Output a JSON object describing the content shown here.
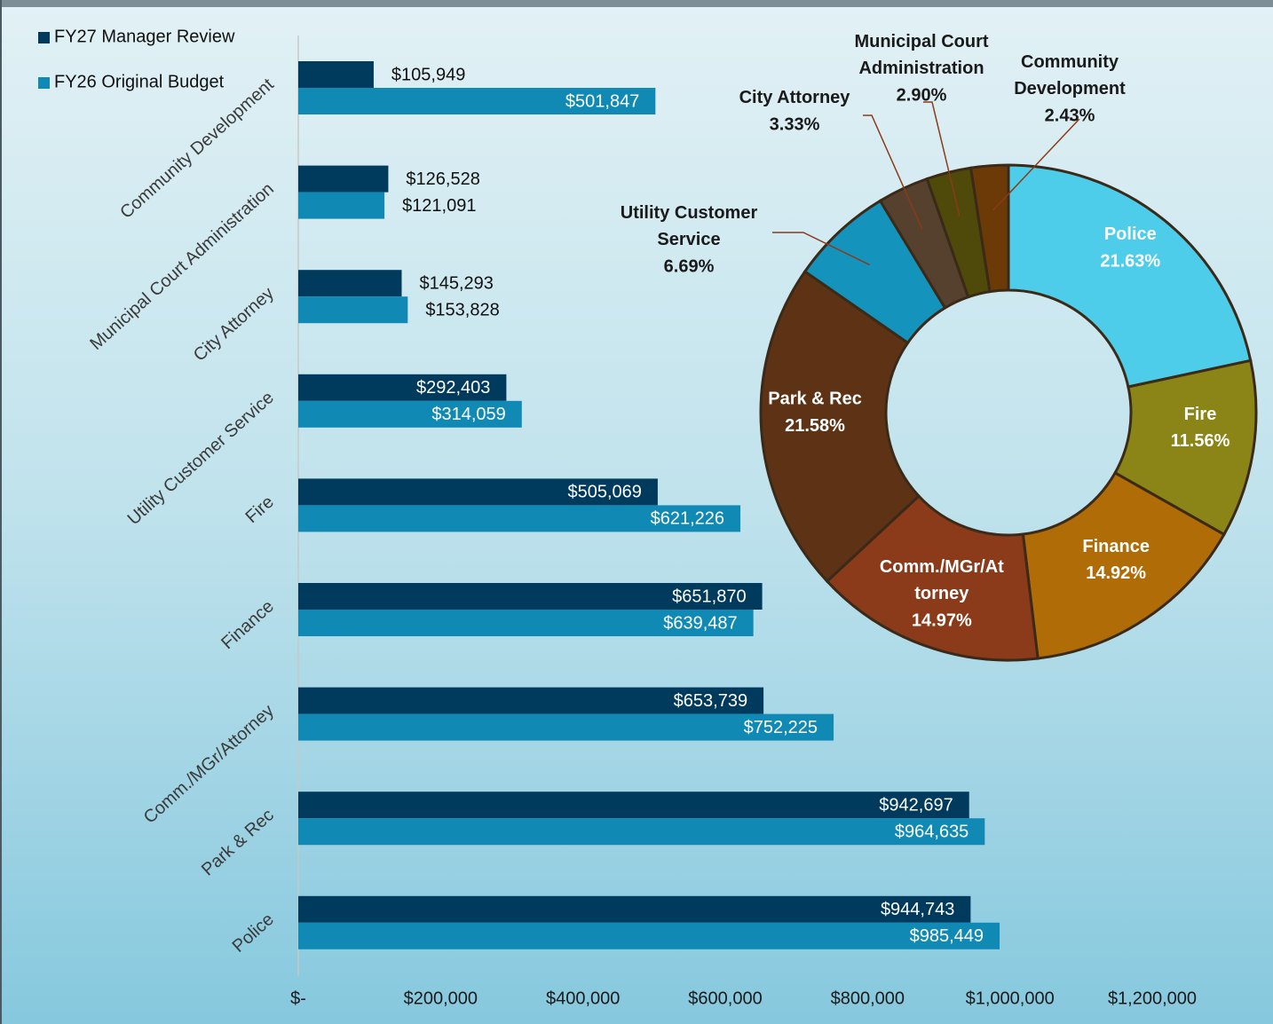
{
  "chart_data": [
    {
      "type": "bar",
      "orientation": "horizontal",
      "categories": [
        "Community Development",
        "Municipal Court Administration",
        "City Attorney",
        "Utility Customer Service",
        "Fire",
        "Finance",
        "Comm./MGr/Attorney",
        "Park & Rec",
        "Police"
      ],
      "series": [
        {
          "name": "FY27 Manager Review",
          "color": "#003a5c",
          "values": [
            105949,
            126528,
            145293,
            292403,
            505069,
            651870,
            653739,
            942697,
            944743
          ],
          "value_labels": [
            "$105,949",
            "$126,528",
            "$145,293",
            "$292,403",
            "$505,069",
            "$651,870",
            "$653,739",
            "$942,697",
            "$944,743"
          ]
        },
        {
          "name": "FY26 Original Budget",
          "color": "#1189b5",
          "values": [
            501847,
            121091,
            153828,
            314059,
            621226,
            639487,
            752225,
            964635,
            985449
          ],
          "value_labels": [
            "$501,847",
            "$121,091",
            "$153,828",
            "$314,059",
            "$621,226",
            "$639,487",
            "$752,225",
            "$964,635",
            "$985,449"
          ]
        }
      ],
      "xlim": [
        0,
        1200000
      ],
      "xticks": [
        {
          "value": 0,
          "label": "$-"
        },
        {
          "value": 200000,
          "label": "$200,000"
        },
        {
          "value": 400000,
          "label": "$400,000"
        },
        {
          "value": 600000,
          "label": "$600,000"
        },
        {
          "value": 800000,
          "label": "$800,000"
        },
        {
          "value": 1000000,
          "label": "$1,000,000"
        },
        {
          "value": 1200000,
          "label": "$1,200,000"
        }
      ],
      "legend": "top-left"
    },
    {
      "type": "donut",
      "categories": [
        "Police",
        "Fire",
        "Finance",
        "Comm./MGr/At torney",
        "Park & Rec",
        "Utility Customer Service",
        "City Attorney",
        "Municipal Court Administration",
        "Community Development"
      ],
      "values": [
        21.63,
        11.56,
        14.92,
        14.97,
        21.58,
        6.69,
        3.33,
        2.9,
        2.43
      ],
      "value_labels": [
        "21.63%",
        "11.56%",
        "14.92%",
        "14.97%",
        "21.58%",
        "6.69%",
        "3.33%",
        "2.90%",
        "2.43%"
      ],
      "colors": [
        "#4dcdea",
        "#8b8417",
        "#b06c06",
        "#8b3a1a",
        "#5e3214",
        "#1493bd",
        "#56412e",
        "#4f4a0a",
        "#6b3a07"
      ]
    }
  ]
}
